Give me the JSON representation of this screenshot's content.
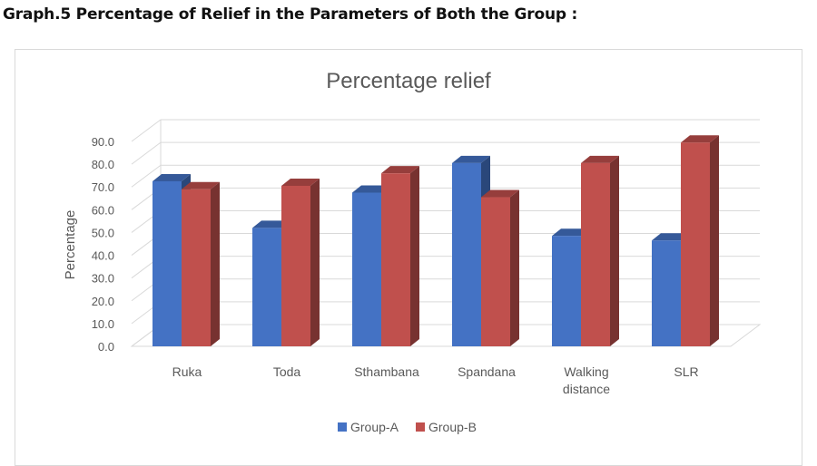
{
  "caption": "Graph.5 Percentage of Relief in the Parameters of Both the Group :",
  "chart_data": {
    "type": "bar",
    "title": "Percentage relief",
    "ylabel": "Percentage",
    "xlabel": "",
    "ylim": [
      0,
      90
    ],
    "ytick_step": 10,
    "ytick_labels": [
      "0.0",
      "10.0",
      "20.0",
      "30.0",
      "40.0",
      "50.0",
      "60.0",
      "70.0",
      "80.0",
      "90.0"
    ],
    "categories": [
      "Ruka",
      "Toda",
      "Sthambana",
      "Spandana",
      "Walking distance",
      "SLR"
    ],
    "category_lines": [
      [
        "Ruka"
      ],
      [
        "Toda"
      ],
      [
        "Sthambana"
      ],
      [
        "Spandana"
      ],
      [
        "Walking",
        "distance"
      ],
      [
        "SLR"
      ]
    ],
    "series": [
      {
        "name": "Group-A",
        "color": "#4472c4",
        "values": [
          72.5,
          52.0,
          67.5,
          80.5,
          48.5,
          46.5
        ]
      },
      {
        "name": "Group-B",
        "color": "#c0504d",
        "values": [
          69.0,
          70.5,
          76.0,
          65.5,
          80.5,
          89.5
        ]
      }
    ],
    "grid": true,
    "legend_position": "bottom"
  }
}
